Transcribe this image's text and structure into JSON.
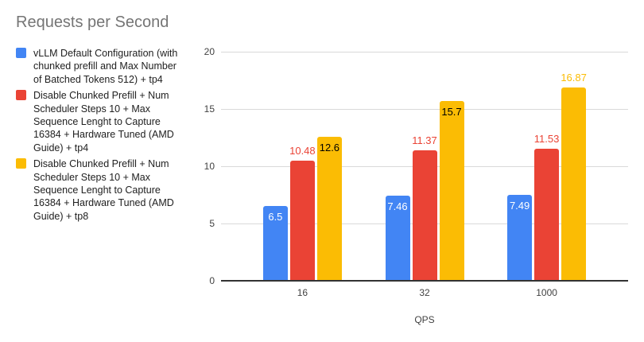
{
  "title": {
    "text": "Requests per Second",
    "color": "#757575"
  },
  "legend": {
    "position": "left",
    "items": [
      {
        "label": "vLLM Default Configuration (with\nchunked prefill and Max Number\nof Batched Tokens 512) + tp4",
        "color": "#4285F4"
      },
      {
        "label": "Disable Chunked Prefill + Num\nScheduler Steps 10 + Max\nSequence Lenght to Capture\n16384 + Hardware Tuned (AMD\nGuide) + tp4",
        "color": "#EA4335"
      },
      {
        "label": "Disable Chunked Prefill + Num\nScheduler Steps 10 + Max\nSequence Lenght to Capture\n16384 + Hardware Tuned (AMD\nGuide) + tp8",
        "color": "#FBBC04"
      }
    ]
  },
  "chart_data": {
    "type": "bar",
    "title": "Requests per Second",
    "xlabel": "QPS",
    "ylabel": "",
    "ylim": [
      0,
      20
    ],
    "yticks": [
      0,
      5,
      10,
      15,
      20
    ],
    "grid": true,
    "legend_position": "left",
    "categories": [
      "16",
      "32",
      "1000"
    ],
    "series": [
      {
        "name": "vLLM Default Configuration (with chunked prefill and Max Number of Batched Tokens 512) + tp4",
        "color": "#4285F4",
        "values": [
          6.5,
          7.46,
          7.49
        ],
        "labels": [
          "6.5",
          "7.46",
          "7.49"
        ],
        "label_placement": [
          "inside",
          "inside",
          "inside"
        ],
        "label_colors": [
          "#ffffff",
          "#ffffff",
          "#ffffff"
        ]
      },
      {
        "name": "Disable Chunked Prefill + Num Scheduler Steps 10 + Max Sequence Lenght to Capture 16384 + Hardware Tuned (AMD Guide) + tp4",
        "color": "#EA4335",
        "values": [
          10.48,
          11.37,
          11.53
        ],
        "labels": [
          "10.48",
          "11.37",
          "11.53"
        ],
        "label_placement": [
          "outside",
          "outside",
          "outside"
        ],
        "label_colors": [
          "#EA4335",
          "#EA4335",
          "#EA4335"
        ]
      },
      {
        "name": "Disable Chunked Prefill + Num Scheduler Steps 10 + Max Sequence Lenght to Capture 16384 + Hardware Tuned (AMD Guide) + tp8",
        "color": "#FBBC04",
        "values": [
          12.6,
          15.7,
          16.87
        ],
        "labels": [
          "12.6",
          "15.7",
          "16.87"
        ],
        "label_placement": [
          "inside",
          "inside",
          "outside"
        ],
        "label_colors": [
          "#000000",
          "#000000",
          "#FBBC04"
        ]
      }
    ]
  }
}
